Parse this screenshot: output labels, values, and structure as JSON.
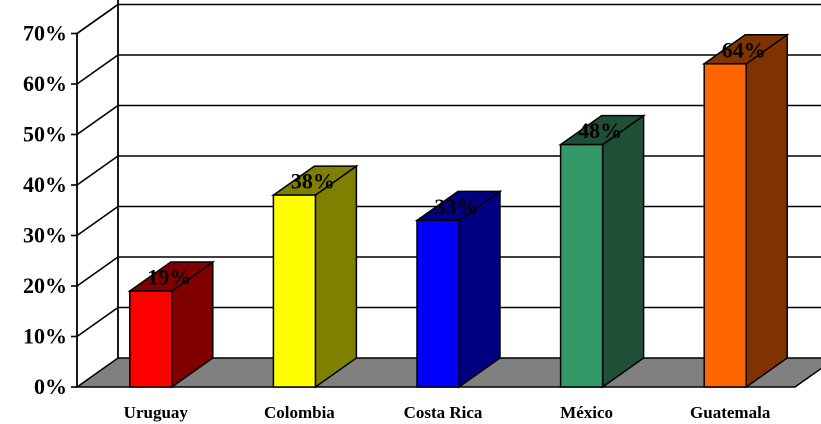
{
  "chart_data": {
    "type": "bar",
    "style": "3d-column",
    "categories": [
      "Uruguay",
      "Colombia",
      "Costa Rica",
      "México",
      "Guatemala"
    ],
    "values": [
      19,
      38,
      33,
      48,
      64
    ],
    "data_labels": [
      "19%",
      "38%",
      "33%",
      "48%",
      "64%"
    ],
    "colors": [
      {
        "front": "#ff0000",
        "side": "#800000"
      },
      {
        "front": "#ffff00",
        "side": "#808000"
      },
      {
        "front": "#0000ff",
        "side": "#000080"
      },
      {
        "front": "#339966",
        "side": "#1f4f37"
      },
      {
        "front": "#ff6600",
        "side": "#803300"
      }
    ],
    "y_ticks": [
      "0%",
      "10%",
      "20%",
      "30%",
      "40%",
      "50%",
      "60%",
      "70%"
    ],
    "ylim": [
      0,
      70
    ],
    "grid": true,
    "legend": "none",
    "floor_color": "#808080"
  }
}
